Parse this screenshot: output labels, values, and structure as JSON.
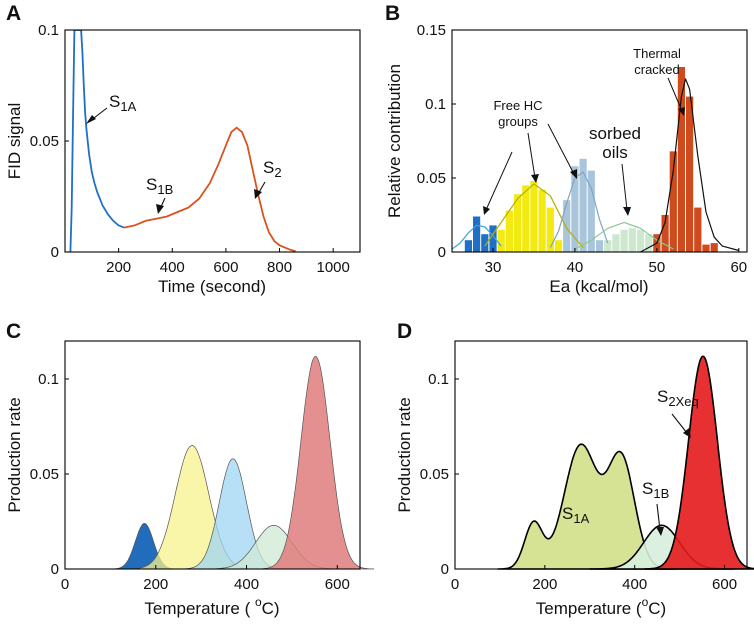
{
  "panel_labels": {
    "a": "A",
    "b": "B",
    "c": "C",
    "d": "D"
  },
  "chart_data": [
    {
      "panel": "A",
      "type": "line",
      "xlabel": "Time (second)",
      "ylabel": "FID signal",
      "xlim": [
        0,
        1100
      ],
      "ylim": [
        0,
        0.1
      ],
      "xticks": [
        "200",
        "400",
        "600",
        "800",
        "1000"
      ],
      "yticks": [
        "0",
        "0.05",
        "0.1"
      ],
      "annotations": {
        "s1a_main": "S",
        "s1a_sub": "1A",
        "s1b_main": "S",
        "s1b_sub": "1B",
        "s2_main": "S",
        "s2_sub": "2"
      },
      "series": [
        {
          "name": "S1 (blue)",
          "color": "#1f6fc5",
          "x": [
            20,
            25,
            30,
            35,
            40,
            45,
            50,
            55,
            60,
            65,
            70,
            75,
            80,
            90,
            100,
            110,
            120,
            130,
            140,
            150,
            160,
            180,
            200,
            220
          ],
          "y": [
            0,
            0.02,
            0.06,
            0.1,
            0.1,
            0.1,
            0.1,
            0.1,
            0.1,
            0.09,
            0.075,
            0.063,
            0.055,
            0.044,
            0.036,
            0.031,
            0.027,
            0.024,
            0.021,
            0.019,
            0.017,
            0.014,
            0.012,
            0.011
          ]
        },
        {
          "name": "S2 (orange)",
          "color": "#d9531e",
          "x": [
            220,
            260,
            300,
            340,
            380,
            420,
            460,
            500,
            540,
            570,
            600,
            620,
            640,
            660,
            680,
            700,
            720,
            740,
            760,
            780,
            800,
            820,
            840,
            860
          ],
          "y": [
            0.011,
            0.012,
            0.014,
            0.015,
            0.016,
            0.018,
            0.02,
            0.024,
            0.031,
            0.039,
            0.048,
            0.054,
            0.056,
            0.054,
            0.048,
            0.037,
            0.026,
            0.016,
            0.009,
            0.005,
            0.003,
            0.002,
            0.001,
            0.0003
          ]
        }
      ]
    },
    {
      "panel": "B",
      "type": "bar",
      "xlabel": "Ea (kcal/mol)",
      "ylabel": "Relative contribution",
      "xlim": [
        25,
        61
      ],
      "ylim": [
        0,
        0.15
      ],
      "xticks": [
        "30",
        "40",
        "50",
        "60"
      ],
      "yticks": [
        "0",
        "0.05",
        "0.1",
        "0.15"
      ],
      "annotations": {
        "free_hc_line1": "Free HC",
        "free_hc_line2": "groups",
        "sorbed_line1": "sorbed",
        "sorbed_line2": "oils",
        "thermal_line1": "Thermal",
        "thermal_line2": "cracked"
      },
      "series": [
        {
          "name": "blue",
          "color": "#1f6fc5",
          "x": [
            27,
            28,
            29,
            30
          ],
          "values": [
            0.008,
            0.024,
            0.012,
            0.018
          ]
        },
        {
          "name": "yellow",
          "color": "#f2ea10",
          "x": [
            31,
            32,
            33,
            34,
            35,
            36,
            37,
            38
          ],
          "values": [
            0.015,
            0.028,
            0.039,
            0.045,
            0.048,
            0.042,
            0.03,
            0.008
          ]
        },
        {
          "name": "light blue",
          "color": "#a9c5dc",
          "x": [
            39,
            40,
            41,
            42,
            43
          ],
          "values": [
            0.035,
            0.058,
            0.063,
            0.055,
            0.008
          ]
        },
        {
          "name": "light green",
          "color": "#cde8cf",
          "x": [
            44,
            45,
            46,
            47,
            48,
            49,
            50
          ],
          "values": [
            0.008,
            0.012,
            0.015,
            0.016,
            0.015,
            0.012,
            0.007
          ]
        },
        {
          "name": "red",
          "color": "#cf4a1d",
          "x": [
            50,
            51,
            52,
            53,
            54,
            55,
            56,
            57
          ],
          "values": [
            0.012,
            0.025,
            0.068,
            0.125,
            0.105,
            0.03,
            0.005,
            0.006
          ]
        }
      ],
      "fit_curves": [
        {
          "name": "blue fit",
          "color": "#3aa5d5",
          "x": [
            25,
            26,
            27,
            28,
            29,
            30,
            31
          ],
          "y": [
            0.002,
            0.006,
            0.013,
            0.018,
            0.017,
            0.011,
            0.004
          ]
        },
        {
          "name": "yellow fit",
          "color": "#b5ae00",
          "x": [
            29,
            31,
            33,
            35,
            37,
            39,
            41
          ],
          "y": [
            0.004,
            0.02,
            0.036,
            0.046,
            0.038,
            0.016,
            0.003
          ]
        },
        {
          "name": "light blue fit",
          "color": "#7fa5c5",
          "x": [
            37,
            38,
            39,
            40,
            41,
            42,
            43,
            44
          ],
          "y": [
            0.003,
            0.014,
            0.033,
            0.05,
            0.054,
            0.043,
            0.022,
            0.006
          ]
        },
        {
          "name": "green fit",
          "color": "#8ac98e",
          "x": [
            40,
            42,
            44,
            46,
            48,
            50,
            52
          ],
          "y": [
            0.002,
            0.008,
            0.016,
            0.02,
            0.016,
            0.008,
            0.002
          ]
        },
        {
          "name": "thermal fit",
          "color": "#111111",
          "x": [
            48,
            50,
            51,
            52,
            53,
            53.5,
            54,
            55,
            56,
            57,
            58,
            60
          ],
          "y": [
            0,
            0.006,
            0.02,
            0.055,
            0.105,
            0.117,
            0.11,
            0.065,
            0.027,
            0.01,
            0.004,
            0.001
          ]
        }
      ]
    },
    {
      "panel": "C",
      "type": "area",
      "xlabel_main": "Temperature ( ",
      "xlabel_sup": "o",
      "xlabel_end": "C)",
      "ylabel": "Production rate",
      "xlim": [
        0,
        650
      ],
      "ylim": [
        0,
        0.12
      ],
      "xticks": [
        "0",
        "200",
        "400",
        "600"
      ],
      "yticks": [
        "0",
        "0.05",
        "0.1"
      ],
      "series": [
        {
          "name": "blue",
          "color": "#1565b8",
          "opacity": 0.95,
          "peak_temp": 175,
          "peak": 0.024,
          "sigma": 20
        },
        {
          "name": "yellow",
          "color": "#f7f28c",
          "opacity": 0.75,
          "peak_temp": 280,
          "peak": 0.065,
          "sigma": 37
        },
        {
          "name": "light blue",
          "color": "#9fd4f2",
          "opacity": 0.75,
          "peak_temp": 370,
          "peak": 0.058,
          "sigma": 30
        },
        {
          "name": "light green",
          "color": "#cfe9d4",
          "opacity": 0.75,
          "peak_temp": 460,
          "peak": 0.023,
          "sigma": 40
        },
        {
          "name": "red",
          "color": "#e17c7c",
          "opacity": 0.85,
          "peak_temp": 552,
          "peak": 0.112,
          "sigma": 32
        }
      ]
    },
    {
      "panel": "D",
      "type": "area",
      "xlabel_main": "Temperature (",
      "xlabel_sup": "o",
      "xlabel_end": "C)",
      "ylabel": "Production rate",
      "xlim": [
        0,
        650
      ],
      "ylim": [
        0,
        0.12
      ],
      "xticks": [
        "0",
        "200",
        "400",
        "600"
      ],
      "yticks": [
        "0",
        "0.05",
        "0.1"
      ],
      "annotations": {
        "s1a_main": "S",
        "s1a_sub": "1A",
        "s1b_main": "S",
        "s1b_sub": "1B",
        "s2x_main": "S",
        "s2x_sub": "2Xeq"
      },
      "series": [
        {
          "name": "S1A (green)",
          "color": "#d1e08a",
          "components": [
            {
              "peak_temp": 175,
              "peak": 0.024,
              "sigma": 20
            },
            {
              "peak_temp": 280,
              "peak": 0.065,
              "sigma": 37
            },
            {
              "peak_temp": 370,
              "peak": 0.058,
              "sigma": 30
            }
          ]
        },
        {
          "name": "S1B (light green)",
          "color": "#d7eede",
          "components": [
            {
              "peak_temp": 460,
              "peak": 0.023,
              "sigma": 40
            }
          ]
        },
        {
          "name": "S2Xeq (red)",
          "color": "#e41a1c",
          "components": [
            {
              "peak_temp": 552,
              "peak": 0.112,
              "sigma": 32
            }
          ]
        }
      ]
    }
  ]
}
